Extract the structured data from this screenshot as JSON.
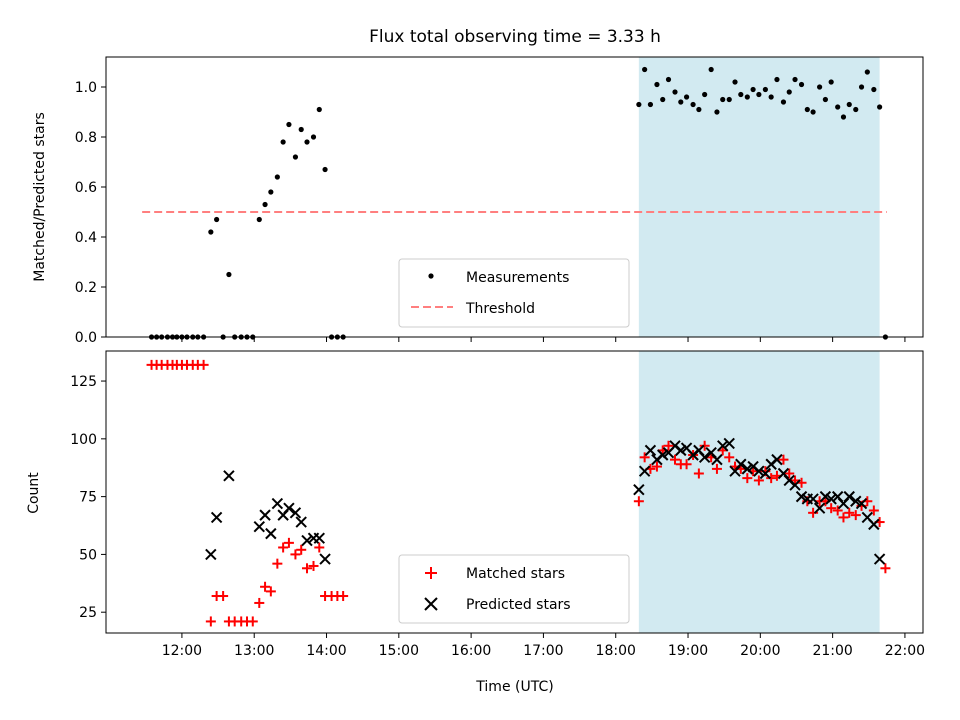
{
  "chart_data": [
    {
      "type": "scatter",
      "title": "Flux total observing time = 3.33 h",
      "ylabel": "Matched/Predicted stars",
      "xlabel": "",
      "ylim": [
        0,
        1.12
      ],
      "yticks": [
        "0.0",
        "0.2",
        "0.4",
        "0.6",
        "0.8",
        "1.0"
      ],
      "shaded_region": [
        18.32,
        21.65
      ],
      "shaded_color": "#add8e6",
      "legend_position": "lower center",
      "series": [
        {
          "name": "Measurements",
          "color": "#000000",
          "marker": "dot",
          "x": [
            11.58,
            11.65,
            11.72,
            11.8,
            11.87,
            11.93,
            12.0,
            12.07,
            12.15,
            12.22,
            12.3,
            12.4,
            12.48,
            12.57,
            12.65,
            12.73,
            12.82,
            12.9,
            12.98,
            13.07,
            13.15,
            13.23,
            13.32,
            13.4,
            13.48,
            13.57,
            13.65,
            13.73,
            13.82,
            13.9,
            13.98,
            14.07,
            14.15,
            14.23,
            18.32,
            18.4,
            18.48,
            18.57,
            18.65,
            18.73,
            18.82,
            18.9,
            18.98,
            19.07,
            19.15,
            19.23,
            19.32,
            19.4,
            19.48,
            19.57,
            19.65,
            19.73,
            19.82,
            19.9,
            19.98,
            20.07,
            20.15,
            20.23,
            20.32,
            20.4,
            20.48,
            20.57,
            20.65,
            20.73,
            20.82,
            20.9,
            20.98,
            21.07,
            21.15,
            21.23,
            21.32,
            21.4,
            21.48,
            21.57,
            21.65,
            21.73
          ],
          "y": [
            0,
            0,
            0,
            0,
            0,
            0,
            0,
            0,
            0,
            0,
            0,
            0.42,
            0.47,
            0,
            0.25,
            0,
            0,
            0,
            0,
            0.47,
            0.53,
            0.58,
            0.64,
            0.78,
            0.85,
            0.72,
            0.83,
            0.78,
            0.8,
            0.91,
            0.67,
            0,
            0,
            0,
            0.93,
            1.07,
            0.93,
            1.01,
            0.95,
            1.03,
            0.98,
            0.94,
            0.96,
            0.93,
            0.91,
            0.97,
            1.07,
            0.9,
            0.95,
            0.95,
            1.02,
            0.97,
            0.96,
            0.99,
            0.97,
            0.99,
            0.96,
            1.03,
            0.94,
            0.98,
            1.03,
            1.01,
            0.91,
            0.9,
            1.0,
            0.95,
            1.02,
            0.92,
            0.88,
            0.93,
            0.91,
            1.0,
            1.06,
            0.99,
            0.92,
            0
          ]
        },
        {
          "name": "Threshold",
          "color": "#ff7f7f",
          "style": "dashed",
          "x": [
            11.45,
            21.75
          ],
          "y": [
            0.5,
            0.5
          ]
        }
      ]
    },
    {
      "type": "scatter",
      "title": "",
      "ylabel": "Count",
      "xlabel": "Time (UTC)",
      "xlim": [
        10.95,
        22.25
      ],
      "ylim": [
        16,
        138
      ],
      "yticks": [
        "25",
        "50",
        "75",
        "100",
        "125"
      ],
      "xticks": [
        "12:00",
        "13:00",
        "14:00",
        "15:00",
        "16:00",
        "17:00",
        "18:00",
        "19:00",
        "20:00",
        "21:00",
        "22:00"
      ],
      "shaded_region": [
        18.32,
        21.65
      ],
      "shaded_color": "#add8e6",
      "legend_position": "lower center",
      "series": [
        {
          "name": "Matched stars",
          "color": "#ff0000",
          "marker": "plus",
          "x": [
            11.58,
            11.65,
            11.72,
            11.8,
            11.87,
            11.93,
            12.0,
            12.07,
            12.15,
            12.22,
            12.3,
            12.4,
            12.48,
            12.57,
            12.65,
            12.73,
            12.82,
            12.9,
            12.98,
            13.07,
            13.15,
            13.23,
            13.32,
            13.4,
            13.48,
            13.57,
            13.65,
            13.73,
            13.82,
            13.9,
            13.98,
            14.07,
            14.15,
            14.23,
            18.32,
            18.4,
            18.48,
            18.57,
            18.65,
            18.73,
            18.82,
            18.9,
            18.98,
            19.07,
            19.15,
            19.23,
            19.32,
            19.4,
            19.48,
            19.57,
            19.65,
            19.73,
            19.82,
            19.9,
            19.98,
            20.07,
            20.15,
            20.23,
            20.32,
            20.4,
            20.48,
            20.57,
            20.65,
            20.73,
            20.82,
            20.9,
            20.98,
            21.07,
            21.15,
            21.23,
            21.32,
            21.4,
            21.48,
            21.57,
            21.65,
            21.73
          ],
          "y": [
            132,
            132,
            132,
            132,
            132,
            132,
            132,
            132,
            132,
            132,
            132,
            21,
            32,
            32,
            21,
            21,
            21,
            21,
            21,
            29,
            36,
            34,
            46,
            53,
            55,
            50,
            52,
            44,
            45,
            53,
            32,
            32,
            32,
            32,
            73,
            92,
            87,
            88,
            95,
            97,
            91,
            89,
            89,
            93,
            85,
            97,
            92,
            87,
            95,
            92,
            88,
            87,
            83,
            86,
            82,
            86,
            83,
            84,
            91,
            85,
            82,
            81,
            73,
            68,
            73,
            73,
            70,
            69,
            66,
            68,
            67,
            71,
            73,
            69,
            64,
            44
          ]
        },
        {
          "name": "Predicted stars",
          "color": "#000000",
          "marker": "x",
          "x": [
            12.4,
            12.48,
            12.65,
            13.07,
            13.15,
            13.23,
            13.32,
            13.4,
            13.48,
            13.57,
            13.65,
            13.73,
            13.82,
            13.9,
            13.98,
            18.32,
            18.4,
            18.48,
            18.57,
            18.65,
            18.73,
            18.82,
            18.9,
            18.98,
            19.07,
            19.15,
            19.23,
            19.32,
            19.4,
            19.48,
            19.57,
            19.65,
            19.73,
            19.82,
            19.9,
            19.98,
            20.07,
            20.15,
            20.23,
            20.32,
            20.4,
            20.48,
            20.57,
            20.65,
            20.73,
            20.82,
            20.9,
            20.98,
            21.07,
            21.15,
            21.23,
            21.32,
            21.4,
            21.48,
            21.57,
            21.65
          ],
          "y": [
            50,
            66,
            84,
            62,
            67,
            59,
            72,
            67,
            70,
            68,
            64,
            56,
            57,
            57,
            48,
            78,
            86,
            95,
            91,
            93,
            94,
            97,
            95,
            96,
            93,
            95,
            92,
            94,
            91,
            97,
            98,
            86,
            89,
            87,
            88,
            86,
            85,
            89,
            91,
            85,
            82,
            80,
            75,
            74,
            74,
            70,
            75,
            74,
            75,
            72,
            75,
            73,
            72,
            66,
            63,
            48
          ]
        }
      ]
    }
  ]
}
